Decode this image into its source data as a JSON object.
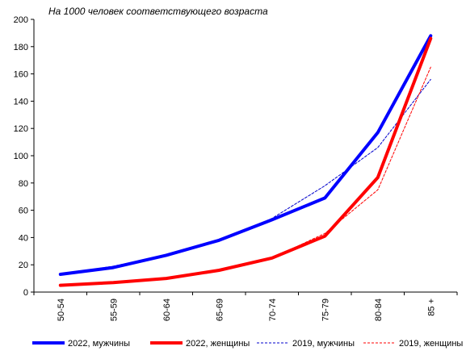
{
  "chart_data": {
    "type": "line",
    "subtitle": "На 1000 человек соответствующего возраста",
    "categories": [
      "50-54",
      "55-59",
      "60-64",
      "65-69",
      "70-74",
      "75-79",
      "80-84",
      "85 +"
    ],
    "ylim": [
      0,
      200
    ],
    "yticks": [
      0,
      20,
      40,
      60,
      80,
      100,
      120,
      140,
      160,
      180,
      200
    ],
    "grid": false,
    "legend_position": "bottom",
    "series": [
      {
        "name": "2022, мужчины",
        "color": "#0000ff",
        "style": "solid-thick",
        "values": [
          13,
          18,
          27,
          38,
          53,
          69,
          117,
          188
        ]
      },
      {
        "name": "2022, женщины",
        "color": "#ff0000",
        "style": "solid-thick",
        "values": [
          5,
          7,
          10,
          16,
          25,
          41,
          84,
          186
        ]
      },
      {
        "name": "2019, мужчины",
        "color": "#0000cc",
        "style": "dashed-thin",
        "values": [
          13,
          19,
          27,
          38,
          54,
          78,
          106,
          156
        ]
      },
      {
        "name": "2019, женщины",
        "color": "#ff0000",
        "style": "dashed-thin",
        "values": [
          5,
          7,
          10,
          16,
          25,
          43,
          75,
          165
        ]
      }
    ]
  }
}
